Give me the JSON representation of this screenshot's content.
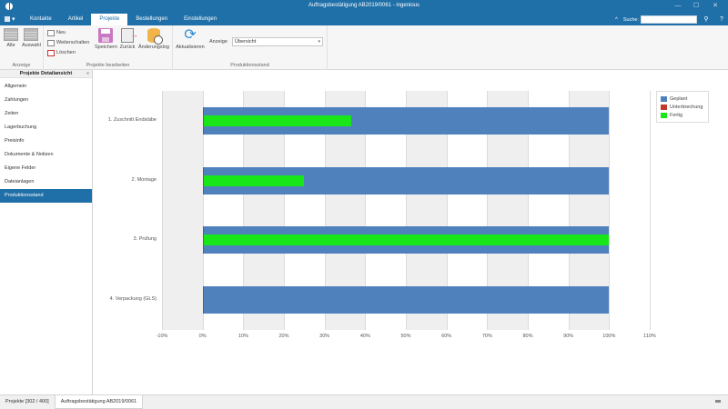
{
  "window": {
    "title": "Auftragsbestätigung AB2019/0061 - ingenious",
    "controls": {
      "minimize": "—",
      "maximize": "☐",
      "close": "✕"
    }
  },
  "menu": {
    "app_menu_icon": "grid-menu-icon",
    "arrow": "▾"
  },
  "tabs": [
    {
      "label": "Kontakte",
      "active": false
    },
    {
      "label": "Artikel",
      "active": false
    },
    {
      "label": "Projekte",
      "active": true
    },
    {
      "label": "Bestellungen",
      "active": false
    },
    {
      "label": "Einstellungen",
      "active": false
    }
  ],
  "search": {
    "collapse_arrow": "^",
    "label": "Suche:",
    "value": "",
    "placeholder": "",
    "binoculars": "⚲",
    "help": "?"
  },
  "ribbon": {
    "groups": [
      {
        "label": "Anzeige",
        "buttons": [
          {
            "label": "Alle"
          },
          {
            "label": "Auswahl"
          }
        ]
      },
      {
        "label": "Projekte bearbeiten",
        "small_buttons": [
          {
            "label": "Neu"
          },
          {
            "label": "Weiterschalten"
          },
          {
            "label": "Löschen"
          }
        ],
        "buttons": [
          {
            "label": "Speichern"
          },
          {
            "label": "Zurück"
          },
          {
            "label": "Änderungslog"
          }
        ]
      },
      {
        "label": "Produktionsstand",
        "buttons": [
          {
            "label": "Aktualisieren"
          }
        ],
        "anzeige_label": "Anzeige",
        "anzeige_value": "Übersicht",
        "anzeige_caret": "▾"
      }
    ]
  },
  "sidebar": {
    "title": "Projekte Detailansicht",
    "collapse": "«",
    "items": [
      {
        "label": "Allgemein",
        "active": false
      },
      {
        "label": "Zahlungen",
        "active": false
      },
      {
        "label": "Zeiten",
        "active": false
      },
      {
        "label": "Lagerbuchung",
        "active": false
      },
      {
        "label": "Preisinfo",
        "active": false
      },
      {
        "label": "Dokumente & Notizen",
        "active": false
      },
      {
        "label": "Eigene Felder",
        "active": false
      },
      {
        "label": "Dateianlagen",
        "active": false
      },
      {
        "label": "Produktionsstand",
        "active": true
      }
    ]
  },
  "chart_data": {
    "type": "bar",
    "orientation": "horizontal",
    "title": "",
    "xlabel": "",
    "ylabel": "",
    "categories": [
      "1. Zuschnitt Endstäbe",
      "2. Montage",
      "3. Prüfung",
      "4. Verpackung (GLS)"
    ],
    "series": [
      {
        "name": "Geplant",
        "color": "#4f81bd",
        "values": [
          100,
          100,
          100,
          100
        ]
      },
      {
        "name": "Unterbrechung",
        "color": "#c0392b",
        "values": [
          0,
          0,
          0,
          0
        ]
      },
      {
        "name": "Fertig",
        "color": "#19e619",
        "values": [
          36.5,
          25,
          100,
          0
        ]
      }
    ],
    "xlim": [
      -10,
      110
    ],
    "xticks": [
      "-10%",
      "0%",
      "10%",
      "20%",
      "30%",
      "40%",
      "50%",
      "60%",
      "70%",
      "80%",
      "90%",
      "100%",
      "110%"
    ],
    "grid": true,
    "legend_position": "top-right"
  },
  "legend": [
    {
      "label": "Geplant",
      "color": "#4f81bd"
    },
    {
      "label": "Unterbrechung",
      "color": "#c0392b"
    },
    {
      "label": "Fertig",
      "color": "#19e619"
    }
  ],
  "bottom_tabs": [
    {
      "label": "Projekte [302 / 400]",
      "active": false
    },
    {
      "label": "Auftragsbestätigung AB2019/0061",
      "active": true
    }
  ],
  "colors": {
    "accent": "#1f6fa8"
  }
}
